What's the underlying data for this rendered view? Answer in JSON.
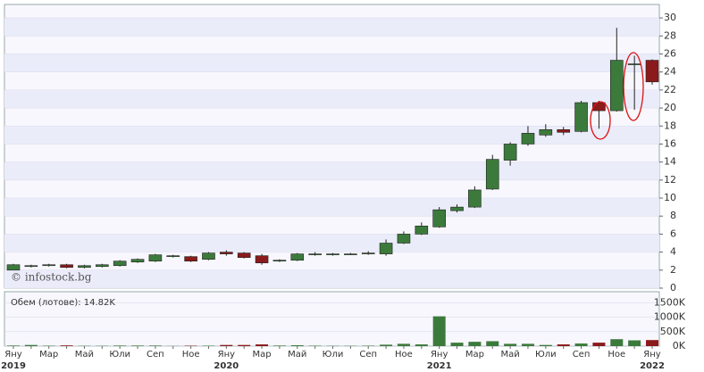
{
  "chart_data": {
    "type": "candlestick",
    "categories": [
      "Яну",
      null,
      "Мар",
      null,
      "Май",
      null,
      "Юли",
      null,
      "Сеп",
      null,
      "Ное",
      null,
      "Яну",
      null,
      "Мар",
      null,
      "Май",
      null,
      "Юли",
      null,
      "Сеп",
      null,
      "Ное",
      null,
      "Яну",
      null,
      "Мар",
      null,
      "Май",
      null,
      "Юли",
      null,
      "Сеп",
      null,
      "Ное",
      null,
      "Яну"
    ],
    "years": [
      "2019",
      null,
      null,
      null,
      null,
      null,
      null,
      null,
      null,
      null,
      null,
      null,
      "2020",
      null,
      null,
      null,
      null,
      null,
      null,
      null,
      null,
      null,
      null,
      null,
      "2021",
      null,
      null,
      null,
      null,
      null,
      null,
      null,
      null,
      null,
      null,
      null,
      "2022"
    ],
    "open": [
      2.0,
      2.4,
      2.5,
      2.6,
      2.3,
      2.4,
      2.5,
      2.9,
      3.0,
      3.5,
      3.5,
      3.2,
      4.0,
      3.9,
      3.6,
      3.0,
      3.1,
      3.7,
      3.7,
      3.8,
      3.8,
      3.8,
      5.0,
      6.0,
      6.8,
      8.6,
      9.0,
      11.0,
      14.2,
      16.0,
      17.0,
      17.6,
      17.4,
      20.6,
      19.7,
      24.8,
      25.3
    ],
    "high": [
      2.7,
      2.6,
      2.7,
      2.7,
      2.6,
      2.7,
      3.1,
      3.3,
      3.8,
      3.7,
      3.6,
      4.0,
      4.2,
      4.0,
      3.8,
      3.2,
      3.9,
      4.0,
      3.9,
      3.9,
      4.1,
      5.4,
      6.3,
      7.3,
      9.0,
      9.3,
      11.3,
      14.8,
      16.2,
      18.0,
      18.2,
      17.9,
      20.8,
      20.8,
      28.9,
      25.8,
      25.4
    ],
    "low": [
      2.0,
      2.3,
      2.4,
      2.2,
      2.2,
      2.3,
      2.4,
      2.8,
      2.9,
      3.4,
      2.9,
      3.1,
      3.6,
      3.3,
      2.6,
      2.9,
      3.0,
      3.6,
      3.6,
      3.7,
      3.7,
      3.6,
      4.9,
      5.9,
      6.7,
      8.4,
      8.9,
      10.9,
      13.6,
      15.8,
      16.8,
      17.0,
      17.3,
      17.7,
      19.6,
      19.8,
      22.6
    ],
    "close": [
      2.6,
      2.5,
      2.6,
      2.3,
      2.5,
      2.6,
      3.0,
      3.2,
      3.7,
      3.6,
      3.0,
      3.9,
      3.8,
      3.4,
      2.8,
      3.1,
      3.8,
      3.8,
      3.8,
      3.8,
      3.9,
      5.0,
      6.0,
      6.9,
      8.7,
      9.0,
      10.9,
      14.3,
      16.0,
      17.2,
      17.6,
      17.3,
      20.6,
      19.7,
      25.3,
      24.9,
      22.9
    ],
    "up_color": "#3c7a3c",
    "down_color": "#8b1a1a",
    "ylim": [
      0,
      31
    ],
    "yticks": [
      0,
      2,
      4,
      6,
      8,
      10,
      12,
      14,
      16,
      18,
      20,
      22,
      24,
      26,
      28,
      30
    ],
    "watermark": "© infostock.bg",
    "volume": {
      "label": "Обем (лотове): 14.82K",
      "values": [
        20,
        40,
        15,
        25,
        10,
        10,
        20,
        20,
        20,
        5,
        15,
        15,
        40,
        40,
        60,
        20,
        30,
        15,
        10,
        10,
        15,
        50,
        80,
        60,
        1030,
        120,
        150,
        170,
        80,
        80,
        40,
        60,
        90,
        120,
        240,
        200,
        210
      ],
      "ylim": [
        0,
        1850
      ],
      "yticks": [
        {
          "value": 0,
          "label": "0K"
        },
        {
          "value": 500,
          "label": "500K"
        },
        {
          "value": 1000,
          "label": "1000K"
        },
        {
          "value": 1500,
          "label": "1500K"
        }
      ]
    }
  }
}
